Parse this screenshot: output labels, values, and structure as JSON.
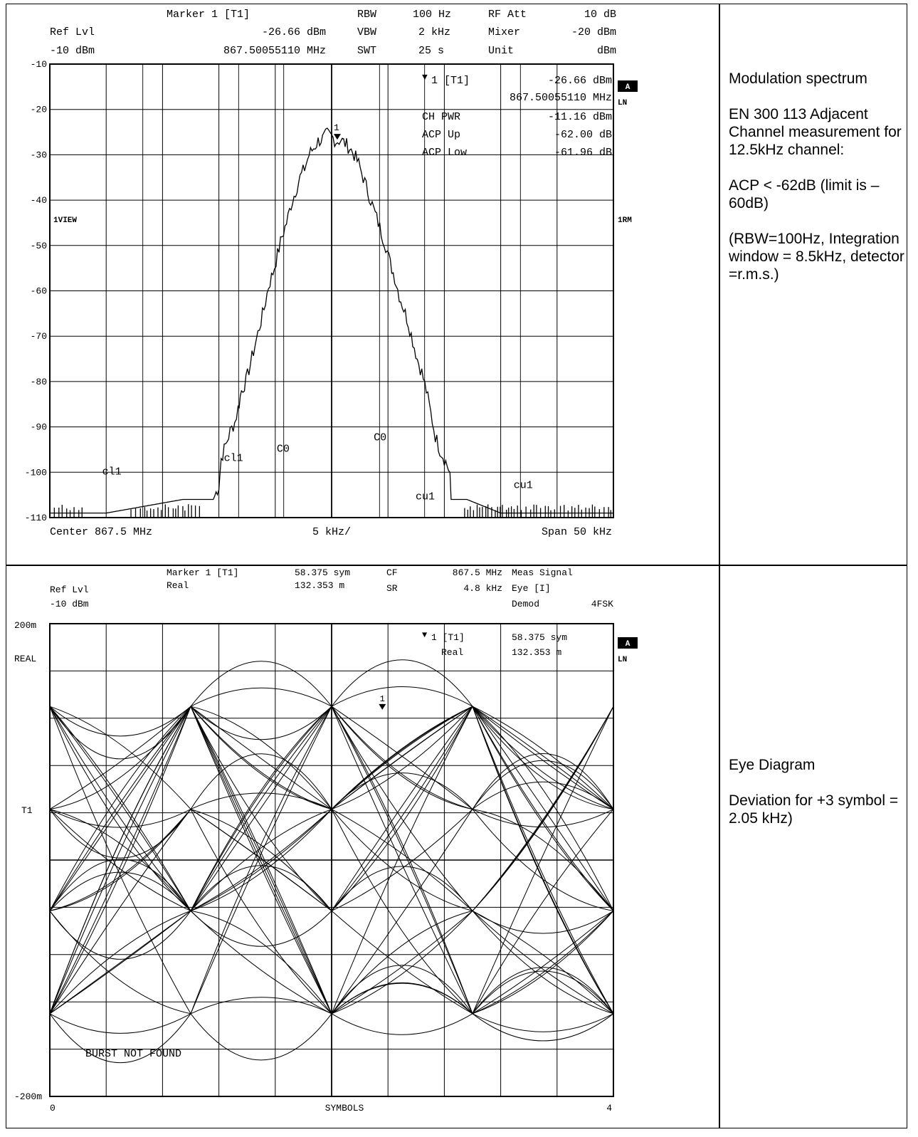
{
  "descriptions": {
    "top": [
      "Modulation spectrum",
      "EN 300 113 Adjacent Channel measurement for 12.5kHz channel:",
      "ACP < -62dB (limit is –60dB)",
      "(RBW=100Hz, Integration window = 8.5kHz, detector =r.m.s.)"
    ],
    "bottom": [
      "Eye Diagram",
      "Deviation for +3 symbol = 2.05 kHz)"
    ]
  },
  "chart_data": [
    {
      "type": "line",
      "header": {
        "marker": "Marker 1 [T1]",
        "ref_lvl_label": "Ref Lvl",
        "ref_lvl_value": "-10 dBm",
        "marker_level": "-26.66 dBm",
        "marker_freq": "867.50055110 MHz",
        "rbw_label": "RBW",
        "rbw_value": "100 Hz",
        "vbw_label": "VBW",
        "vbw_value": "2 kHz",
        "swt_label": "SWT",
        "swt_value": "25 s",
        "rfatt_label": "RF Att",
        "rfatt_value": "10 dB",
        "mixer_label": "Mixer",
        "mixer_value": "-20 dBm",
        "unit_label": "Unit",
        "unit_value": "dBm"
      },
      "marker_box": {
        "marker": "1 [T1]",
        "level": "-26.66 dBm",
        "freq": "867.50055110 MHz",
        "chpwr_label": "CH PWR",
        "chpwr_value": "-11.16 dBm",
        "acpup_label": "ACP Up",
        "acpup_value": "-62.00 dB",
        "acplow_label": "ACP Low",
        "acplow_value": "-61.96 dB"
      },
      "side_labels": {
        "a": "A",
        "ln": "LN",
        "view": "1VIEW",
        "rm": "1RM"
      },
      "footer": {
        "center": "Center 867.5 MHz",
        "div": "5 kHz/",
        "span": "Span 50 kHz"
      },
      "yticks": [
        "-10",
        "-20",
        "-30",
        "-40",
        "-50",
        "-60",
        "-70",
        "-80",
        "-90",
        "-100",
        "-110"
      ],
      "ylim": [
        -110,
        -10
      ],
      "xlim": [
        -25,
        25
      ],
      "x_unit": "kHz",
      "channel_labels": [
        {
          "text": "cl1",
          "x": -19.5,
          "y": -100.5
        },
        {
          "text": "cl1",
          "x": -8.7,
          "y": -97.5
        },
        {
          "text": "C0",
          "x": -4.3,
          "y": -95.5
        },
        {
          "text": "C0",
          "x": 4.3,
          "y": -93
        },
        {
          "text": "cu1",
          "x": 8.3,
          "y": -106
        },
        {
          "text": "cu1",
          "x": 17,
          "y": -103.5
        }
      ],
      "channel_lines_x": [
        -16.75,
        -8.25,
        -4.25,
        4.25,
        8.25,
        16.75
      ],
      "marker_point": {
        "label": "1",
        "x": 0.5,
        "y": -26.66
      },
      "trace": [
        [
          -25,
          -109
        ],
        [
          -20,
          -109
        ],
        [
          -13.2,
          -106
        ],
        [
          -10.5,
          -106
        ],
        [
          -10,
          -103
        ],
        [
          -9.8,
          -97
        ],
        [
          -9.4,
          -94
        ],
        [
          -9,
          -91
        ],
        [
          -8.6,
          -89
        ],
        [
          -8.3,
          -86
        ],
        [
          -8,
          -82
        ],
        [
          -7.6,
          -80
        ],
        [
          -7.2,
          -76
        ],
        [
          -6.8,
          -72
        ],
        [
          -6.4,
          -68
        ],
        [
          -6,
          -64
        ],
        [
          -5.6,
          -59
        ],
        [
          -5.2,
          -56
        ],
        [
          -4.8,
          -52
        ],
        [
          -4.4,
          -48
        ],
        [
          -4,
          -45
        ],
        [
          -3.6,
          -41
        ],
        [
          -3.2,
          -38
        ],
        [
          -2.8,
          -35
        ],
        [
          -2.4,
          -33
        ],
        [
          -2,
          -30
        ],
        [
          -1.6,
          -28.5
        ],
        [
          -1.2,
          -27
        ],
        [
          -0.8,
          -26.5
        ],
        [
          -0.4,
          -25.5
        ],
        [
          0,
          -26
        ],
        [
          0.4,
          -27
        ],
        [
          0.8,
          -26.7
        ],
        [
          1.2,
          -27.5
        ],
        [
          1.6,
          -28.5
        ],
        [
          2,
          -30
        ],
        [
          2.4,
          -32
        ],
        [
          2.8,
          -35
        ],
        [
          3.2,
          -38
        ],
        [
          3.6,
          -41
        ],
        [
          4,
          -44
        ],
        [
          4.4,
          -47
        ],
        [
          4.8,
          -50
        ],
        [
          5.2,
          -54
        ],
        [
          5.6,
          -57
        ],
        [
          6,
          -61
        ],
        [
          6.4,
          -64
        ],
        [
          6.8,
          -67
        ],
        [
          7.2,
          -71
        ],
        [
          7.6,
          -75
        ],
        [
          8,
          -78
        ],
        [
          8.4,
          -82
        ],
        [
          8.8,
          -87
        ],
        [
          9.2,
          -92
        ],
        [
          9.6,
          -95
        ],
        [
          10,
          -97
        ],
        [
          10.5,
          -100
        ],
        [
          10.6,
          -106
        ],
        [
          12,
          -106
        ],
        [
          15,
          -109
        ],
        [
          25,
          -109
        ]
      ]
    },
    {
      "type": "line",
      "header": {
        "marker": "Marker 1 [T1]",
        "marker_sub": "Real",
        "marker_sym": "58.375 sym",
        "marker_val": "132.353 m",
        "cf_label": "CF",
        "cf_value": "867.5 MHz",
        "sr_label": "SR",
        "sr_value": "4.8 kHz",
        "ref_lvl_label": "Ref Lvl",
        "ref_lvl_value": "-10 dBm",
        "meas_label": "Meas Signal",
        "meas_value": "Eye [I]",
        "demod_label": "Demod",
        "demod_value": "4FSK"
      },
      "marker_box": {
        "marker": "1 [T1]",
        "sub": "Real",
        "sym": "58.375 sym",
        "val": "132.353 m"
      },
      "side_labels": {
        "a": "A",
        "ln": "LN",
        "real": "REAL",
        "t1": "T1"
      },
      "footer": {
        "left": "0",
        "center": "SYMBOLS",
        "right": "4"
      },
      "yticks": [
        "200m",
        "-200m"
      ],
      "message": "BURST NOT FOUND",
      "ylim": [
        -200,
        200
      ],
      "xlim": [
        0,
        4
      ],
      "symbol_levels": [
        130,
        43,
        -43,
        -130
      ],
      "marker_point": {
        "label": "1",
        "x": 2.36,
        "y": 132
      }
    }
  ]
}
